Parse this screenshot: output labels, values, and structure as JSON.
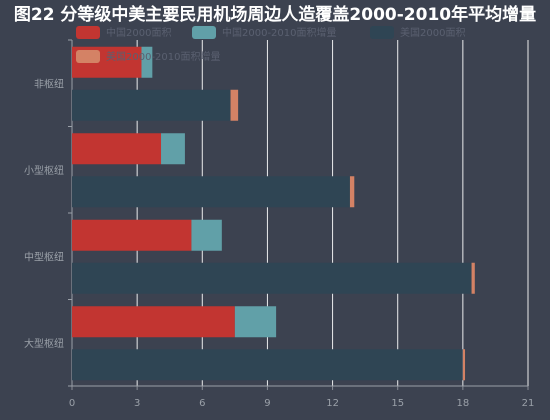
{
  "chart_data": {
    "type": "bar",
    "orientation": "horizontal",
    "stacked": true,
    "title": "图22 分等级中美主要民用机场周边人造覆盖2000-2010年平均增量",
    "categories": [
      "大型枢纽",
      "中型枢纽",
      "小型枢纽",
      "非枢纽"
    ],
    "xlim": [
      0,
      21
    ],
    "x_ticks": [
      "0",
      "3",
      "6",
      "9",
      "12",
      "15",
      "18",
      "21"
    ],
    "grid": true,
    "legend_position": "top-left",
    "series": [
      {
        "name": "中国2000面积",
        "stack": "china",
        "color": "#c23531",
        "values": [
          7.5,
          5.5,
          4.1,
          3.2
        ]
      },
      {
        "name": "中国2000-2010面积增量",
        "stack": "china",
        "color": "#61a0a8",
        "values": [
          1.9,
          1.4,
          1.1,
          0.5
        ]
      },
      {
        "name": "美国2000面积",
        "stack": "usa",
        "color": "#2f4554",
        "values": [
          18.0,
          18.4,
          12.8,
          7.3
        ]
      },
      {
        "name": "美国2000-2010面积增量",
        "stack": "usa",
        "color": "#d48265",
        "values": [
          0.1,
          0.15,
          0.2,
          0.35
        ]
      }
    ]
  }
}
